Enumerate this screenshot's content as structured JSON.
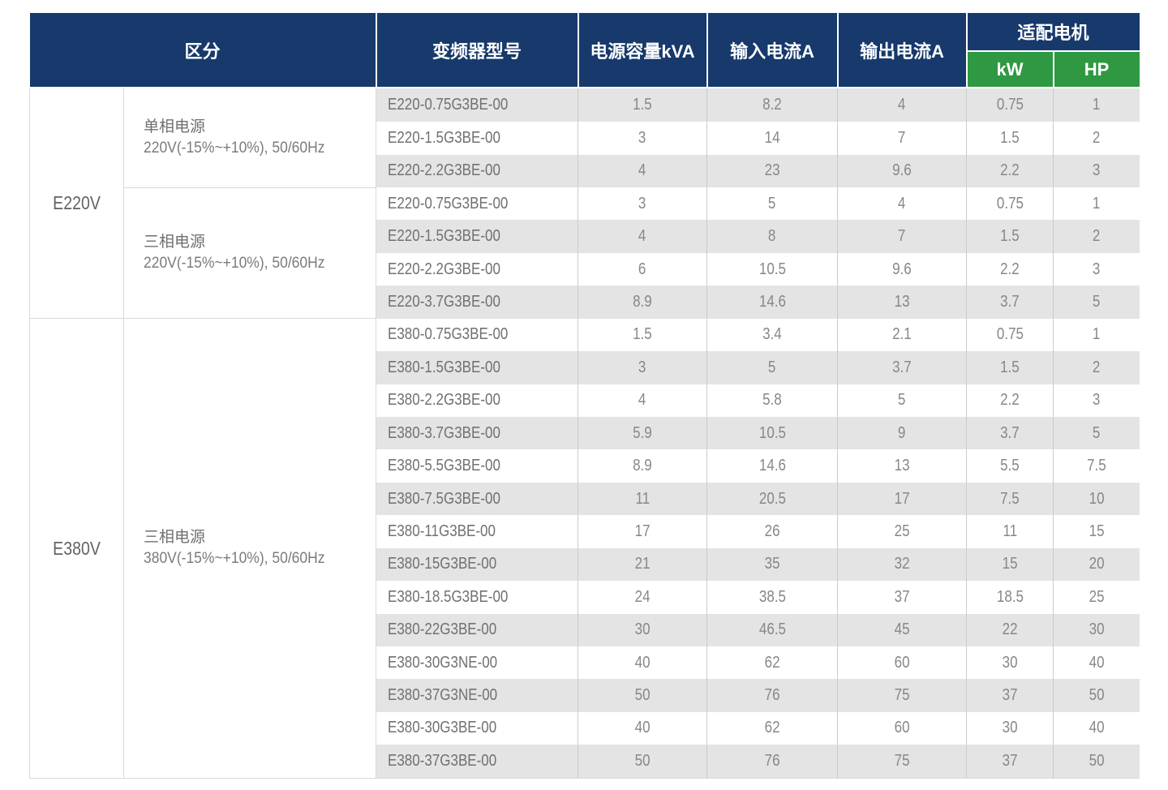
{
  "colors": {
    "header_bg": "#17396B",
    "header_green": "#2E9942",
    "stripe_bg": "#E4E4E4",
    "grid_line": "#CCCCCC",
    "box_line": "#D9D9D9",
    "header_text": "#FFFFFF",
    "data_text": "#878787"
  },
  "table": {
    "headers": {
      "category": "区分",
      "model": "变频器型号",
      "capacity": "电源容量kVA",
      "input": "输入电流A",
      "output": "输出电流A",
      "motor": "适配电机",
      "kw": "kW",
      "hp": "HP"
    },
    "groups": [
      {
        "voltage": "E220V",
        "sections": [
          {
            "power": "单相电源",
            "spec": "220V(-15%~+10%), 50/60Hz",
            "rows": [
              {
                "model": "E220-0.75G3BE-00",
                "kva": "1.5",
                "input": "8.2",
                "output": "4",
                "kw": "0.75",
                "hp": "1"
              },
              {
                "model": "E220-1.5G3BE-00",
                "kva": "3",
                "input": "14",
                "output": "7",
                "kw": "1.5",
                "hp": "2"
              },
              {
                "model": "E220-2.2G3BE-00",
                "kva": "4",
                "input": "23",
                "output": "9.6",
                "kw": "2.2",
                "hp": "3"
              }
            ]
          },
          {
            "power": "三相电源",
            "spec": "220V(-15%~+10%), 50/60Hz",
            "rows": [
              {
                "model": "E220-0.75G3BE-00",
                "kva": "3",
                "input": "5",
                "output": "4",
                "kw": "0.75",
                "hp": "1"
              },
              {
                "model": "E220-1.5G3BE-00",
                "kva": "4",
                "input": "8",
                "output": "7",
                "kw": "1.5",
                "hp": "2"
              },
              {
                "model": "E220-2.2G3BE-00",
                "kva": "6",
                "input": "10.5",
                "output": "9.6",
                "kw": "2.2",
                "hp": "3"
              },
              {
                "model": "E220-3.7G3BE-00",
                "kva": "8.9",
                "input": "14.6",
                "output": "13",
                "kw": "3.7",
                "hp": "5"
              }
            ]
          }
        ]
      },
      {
        "voltage": "E380V",
        "sections": [
          {
            "power": "三相电源",
            "spec": "380V(-15%~+10%), 50/60Hz",
            "rows": [
              {
                "model": "E380-0.75G3BE-00",
                "kva": "1.5",
                "input": "3.4",
                "output": "2.1",
                "kw": "0.75",
                "hp": "1"
              },
              {
                "model": "E380-1.5G3BE-00",
                "kva": "3",
                "input": "5",
                "output": "3.7",
                "kw": "1.5",
                "hp": "2"
              },
              {
                "model": "E380-2.2G3BE-00",
                "kva": "4",
                "input": "5.8",
                "output": "5",
                "kw": "2.2",
                "hp": "3"
              },
              {
                "model": "E380-3.7G3BE-00",
                "kva": "5.9",
                "input": "10.5",
                "output": "9",
                "kw": "3.7",
                "hp": "5"
              },
              {
                "model": "E380-5.5G3BE-00",
                "kva": "8.9",
                "input": "14.6",
                "output": "13",
                "kw": "5.5",
                "hp": "7.5"
              },
              {
                "model": "E380-7.5G3BE-00",
                "kva": "11",
                "input": "20.5",
                "output": "17",
                "kw": "7.5",
                "hp": "10"
              },
              {
                "model": "E380-11G3BE-00",
                "kva": "17",
                "input": "26",
                "output": "25",
                "kw": "11",
                "hp": "15"
              },
              {
                "model": "E380-15G3BE-00",
                "kva": "21",
                "input": "35",
                "output": "32",
                "kw": "15",
                "hp": "20"
              },
              {
                "model": "E380-18.5G3BE-00",
                "kva": "24",
                "input": "38.5",
                "output": "37",
                "kw": "18.5",
                "hp": "25"
              },
              {
                "model": "E380-22G3BE-00",
                "kva": "30",
                "input": "46.5",
                "output": "45",
                "kw": "22",
                "hp": "30"
              },
              {
                "model": "E380-30G3NE-00",
                "kva": "40",
                "input": "62",
                "output": "60",
                "kw": "30",
                "hp": "40"
              },
              {
                "model": "E380-37G3NE-00",
                "kva": "50",
                "input": "76",
                "output": "75",
                "kw": "37",
                "hp": "50"
              },
              {
                "model": "E380-30G3BE-00",
                "kva": "40",
                "input": "62",
                "output": "60",
                "kw": "30",
                "hp": "40"
              },
              {
                "model": "E380-37G3BE-00",
                "kva": "50",
                "input": "76",
                "output": "75",
                "kw": "37",
                "hp": "50"
              }
            ]
          }
        ]
      }
    ]
  }
}
